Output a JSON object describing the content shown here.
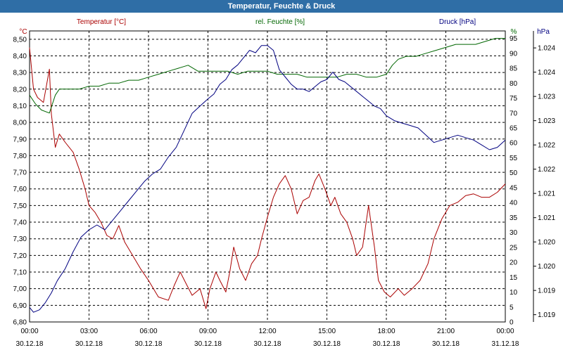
{
  "window": {
    "title": "Temperatur, Feuchte & Druck"
  },
  "colors": {
    "background": "#ffffff",
    "titlebar": "#2f6ea6",
    "temperature": "#aa0000",
    "humidity": "#006600",
    "pressure": "#000080",
    "grid": "#000000"
  },
  "chart_data": {
    "type": "line",
    "title": "Temperatur, Feuchte & Druck",
    "grid": true,
    "axes": {
      "left": {
        "unit": "°C",
        "label": "Temperatur [°C]",
        "range": [
          6.8,
          8.55
        ],
        "ticks": [
          "8,50",
          "8,40",
          "8,30",
          "8,20",
          "8,10",
          "8,00",
          "7,90",
          "7,80",
          "7,70",
          "7,60",
          "7,50",
          "7,40",
          "7,30",
          "7,20",
          "7,10",
          "7,00",
          "6,90",
          "6,80"
        ]
      },
      "right_humidity": {
        "unit": "%",
        "label": "rel. Feuchte [%]",
        "range": [
          0,
          97.5
        ],
        "ticks": [
          "95",
          "90",
          "85",
          "80",
          "75",
          "70",
          "65",
          "60",
          "55",
          "50",
          "45",
          "40",
          "35",
          "30",
          "25",
          "20",
          "15",
          "10",
          "5",
          "0"
        ]
      },
      "right_pressure": {
        "unit": "hPa",
        "label": "Druck [hPa]",
        "ticks": [
          "1.024",
          "1.024",
          "1.023",
          "1.023",
          "1.022",
          "1.022",
          "1.021",
          "1.021",
          "1.020",
          "1.020",
          "1.019",
          "1.019"
        ]
      },
      "x": {
        "ticks": [
          {
            "time": "00:00",
            "date": "30.12.18"
          },
          {
            "time": "03:00",
            "date": "30.12.18"
          },
          {
            "time": "06:00",
            "date": "30.12.18"
          },
          {
            "time": "09:00",
            "date": "30.12.18"
          },
          {
            "time": "12:00",
            "date": "30.12.18"
          },
          {
            "time": "15:00",
            "date": "30.12.18"
          },
          {
            "time": "18:00",
            "date": "30.12.18"
          },
          {
            "time": "21:00",
            "date": "30.12.18"
          },
          {
            "time": "00:00",
            "date": "31.12.18"
          }
        ]
      }
    },
    "series": [
      {
        "name": "Temperatur [°C]",
        "axis": "left",
        "x_hours": [
          0,
          0.2,
          0.4,
          0.7,
          1.0,
          1.1,
          1.3,
          1.5,
          1.8,
          2.2,
          2.5,
          2.8,
          3.0,
          3.3,
          3.6,
          3.9,
          4.2,
          4.5,
          4.8,
          5.2,
          5.6,
          6.0,
          6.5,
          7.0,
          7.3,
          7.6,
          7.9,
          8.2,
          8.6,
          8.9,
          9.1,
          9.4,
          9.6,
          9.9,
          10.1,
          10.3,
          10.6,
          10.9,
          11.2,
          11.5,
          11.7,
          12.0,
          12.3,
          12.6,
          12.9,
          13.2,
          13.5,
          13.8,
          14.1,
          14.4,
          14.6,
          14.9,
          15.2,
          15.4,
          15.7,
          16.0,
          16.3,
          16.5,
          16.8,
          17.1,
          17.4,
          17.6,
          17.9,
          18.2,
          18.6,
          18.9,
          19.3,
          19.7,
          20.1,
          20.4,
          20.8,
          21.2,
          21.6,
          22.0,
          22.4,
          22.8,
          23.2,
          23.6,
          24.0
        ],
        "values": [
          8.45,
          8.2,
          8.15,
          8.12,
          8.32,
          8.05,
          7.85,
          7.93,
          7.88,
          7.82,
          7.72,
          7.6,
          7.5,
          7.46,
          7.4,
          7.32,
          7.3,
          7.38,
          7.28,
          7.2,
          7.12,
          7.05,
          6.95,
          6.93,
          7.02,
          7.1,
          7.03,
          6.96,
          7.0,
          6.88,
          7.0,
          7.1,
          7.05,
          6.98,
          7.1,
          7.25,
          7.12,
          7.05,
          7.15,
          7.2,
          7.3,
          7.43,
          7.55,
          7.63,
          7.68,
          7.6,
          7.45,
          7.53,
          7.55,
          7.65,
          7.69,
          7.6,
          7.5,
          7.55,
          7.45,
          7.4,
          7.3,
          7.2,
          7.25,
          7.5,
          7.25,
          7.05,
          6.98,
          6.95,
          7.0,
          6.96,
          7.0,
          7.05,
          7.15,
          7.3,
          7.42,
          7.5,
          7.52,
          7.56,
          7.57,
          7.55,
          7.55,
          7.58,
          7.63
        ]
      },
      {
        "name": "rel. Feuchte [%]",
        "axis": "right_humidity",
        "x_hours": [
          0,
          0.3,
          0.6,
          1.0,
          1.3,
          1.5,
          2.0,
          2.5,
          3.0,
          3.5,
          4.0,
          4.5,
          5.0,
          5.5,
          6.0,
          6.5,
          7.0,
          7.5,
          8.0,
          8.5,
          9.0,
          9.5,
          10.0,
          10.5,
          11.0,
          11.5,
          12.0,
          12.5,
          13.0,
          13.5,
          14.0,
          14.5,
          15.0,
          15.5,
          16.0,
          16.5,
          17.0,
          17.5,
          18.0,
          18.3,
          18.6,
          19.0,
          19.5,
          20.0,
          20.5,
          21.0,
          21.5,
          22.0,
          22.5,
          23.0,
          23.5,
          24.0
        ],
        "values": [
          76,
          73,
          71,
          70,
          76,
          78,
          78,
          78,
          79,
          79,
          80,
          80,
          81,
          81,
          82,
          83,
          84,
          85,
          86,
          84,
          84,
          84,
          84,
          83,
          84,
          84,
          84,
          83,
          83,
          83,
          82,
          82,
          82,
          82,
          83,
          83,
          82,
          82,
          83,
          86,
          88,
          89,
          89,
          90,
          91,
          92,
          93,
          93,
          93,
          94,
          95,
          95
        ]
      },
      {
        "name": "Druck [hPa]",
        "axis": "right_pressure",
        "x_hours": [
          0,
          0.2,
          0.5,
          0.8,
          1.1,
          1.4,
          1.8,
          2.2,
          2.6,
          3.0,
          3.4,
          3.8,
          4.2,
          4.6,
          5.0,
          5.4,
          5.8,
          6.2,
          6.6,
          7.0,
          7.4,
          7.8,
          8.2,
          8.6,
          9.0,
          9.3,
          9.6,
          9.9,
          10.2,
          10.5,
          10.8,
          11.1,
          11.4,
          11.7,
          12.0,
          12.3,
          12.6,
          12.9,
          13.2,
          13.5,
          13.8,
          14.1,
          14.4,
          14.7,
          15.0,
          15.3,
          15.6,
          15.9,
          16.2,
          16.5,
          16.8,
          17.1,
          17.4,
          17.7,
          18.0,
          18.4,
          18.8,
          19.2,
          19.6,
          20.0,
          20.4,
          20.8,
          21.2,
          21.6,
          22.0,
          22.4,
          22.8,
          23.2,
          23.6,
          24.0
        ],
        "values": [
          1019.15,
          1019.05,
          1019.1,
          1019.25,
          1019.45,
          1019.7,
          1019.95,
          1020.3,
          1020.6,
          1020.75,
          1020.85,
          1020.75,
          1020.95,
          1021.15,
          1021.35,
          1021.55,
          1021.75,
          1021.9,
          1022.0,
          1022.25,
          1022.45,
          1022.8,
          1023.15,
          1023.3,
          1023.45,
          1023.55,
          1023.75,
          1023.85,
          1024.05,
          1024.15,
          1024.3,
          1024.45,
          1024.4,
          1024.55,
          1024.55,
          1024.45,
          1024.05,
          1023.9,
          1023.75,
          1023.65,
          1023.65,
          1023.6,
          1023.7,
          1023.8,
          1023.85,
          1024.0,
          1023.85,
          1023.8,
          1023.7,
          1023.6,
          1023.5,
          1023.4,
          1023.3,
          1023.25,
          1023.1,
          1023.0,
          1022.95,
          1022.9,
          1022.85,
          1022.7,
          1022.55,
          1022.6,
          1022.65,
          1022.7,
          1022.65,
          1022.6,
          1022.5,
          1022.4,
          1022.45,
          1022.6
        ]
      }
    ]
  }
}
